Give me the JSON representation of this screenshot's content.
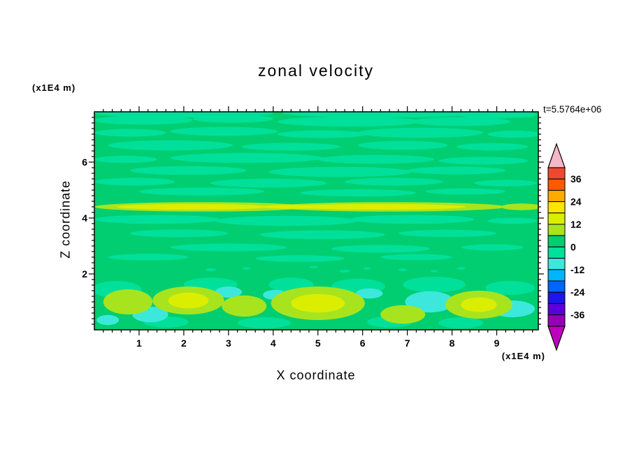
{
  "chart_data": {
    "type": "contour",
    "title": "zonal velocity",
    "xlabel": "X coordinate",
    "ylabel": "Z coordinate",
    "x_unit_label": "(x1E4 m)",
    "y_unit_label": "(x1E4 m)",
    "annotation": "t=5.5764e+06",
    "x_ticks": [
      1,
      2,
      3,
      4,
      5,
      6,
      7,
      8,
      9
    ],
    "y_ticks": [
      2,
      4,
      6
    ],
    "xlim": [
      0,
      9.93
    ],
    "ylim": [
      0,
      7.8
    ],
    "x_minor_step": 0.2,
    "y_minor_step": 0.2,
    "grid": false,
    "legend_position": "right-colorbar",
    "colorbar": {
      "tick_labels": [
        36,
        24,
        12,
        0,
        -12,
        -24,
        -36
      ],
      "levels": [
        -42,
        -36,
        -30,
        -24,
        -18,
        -12,
        -6,
        0,
        6,
        12,
        18,
        24,
        30,
        36,
        42
      ],
      "colors_low_to_high": [
        "#9400B4",
        "#5A00DC",
        "#1E14F0",
        "#0064FF",
        "#00B4FF",
        "#3CE8DC",
        "#00E09A",
        "#00CE70",
        "#A8E41E",
        "#DCEE00",
        "#FFE400",
        "#FFAA00",
        "#FF5A00",
        "#F04830"
      ],
      "over_arrow_color": "#F5B8C8",
      "under_arrow_color": "#BE00BE"
    },
    "field": {
      "background_value": 3,
      "blob_format": [
        "x",
        "z",
        "rx",
        "rz",
        "value"
      ],
      "blobs": [
        [
          2.0,
          7.75,
          2.0,
          0.15,
          -3
        ],
        [
          6.5,
          7.75,
          2.3,
          0.15,
          -3
        ],
        [
          9.0,
          7.7,
          0.9,
          0.13,
          -3
        ],
        [
          1.1,
          7.5,
          1.1,
          0.16,
          -3
        ],
        [
          3.1,
          7.55,
          0.9,
          0.14,
          -3
        ],
        [
          5.7,
          7.45,
          1.6,
          0.18,
          -3
        ],
        [
          8.2,
          7.45,
          1.1,
          0.16,
          -3
        ],
        [
          0.8,
          7.05,
          0.8,
          0.14,
          -3
        ],
        [
          2.9,
          7.1,
          1.2,
          0.16,
          -3
        ],
        [
          5.1,
          7.0,
          1.0,
          0.14,
          -3
        ],
        [
          7.3,
          7.05,
          1.4,
          0.18,
          -3
        ],
        [
          9.4,
          7.0,
          0.6,
          0.13,
          -3
        ],
        [
          1.7,
          6.6,
          1.4,
          0.18,
          -3
        ],
        [
          4.4,
          6.55,
          1.1,
          0.14,
          -3
        ],
        [
          6.9,
          6.6,
          1.0,
          0.16,
          -3
        ],
        [
          8.9,
          6.55,
          0.8,
          0.13,
          -3
        ],
        [
          0.7,
          6.1,
          0.7,
          0.13,
          -3
        ],
        [
          3.4,
          6.15,
          1.7,
          0.18,
          -3
        ],
        [
          6.3,
          6.1,
          1.3,
          0.16,
          -3
        ],
        [
          8.7,
          6.05,
          1.0,
          0.14,
          -3
        ],
        [
          2.1,
          5.7,
          1.3,
          0.16,
          -3
        ],
        [
          5.5,
          5.65,
          1.6,
          0.18,
          -3
        ],
        [
          8.1,
          5.7,
          1.1,
          0.14,
          -3
        ],
        [
          0.9,
          5.3,
          0.9,
          0.14,
          -3
        ],
        [
          3.9,
          5.25,
          1.3,
          0.16,
          -3
        ],
        [
          6.7,
          5.3,
          1.1,
          0.14,
          -3
        ],
        [
          9.2,
          5.25,
          0.7,
          0.12,
          -3
        ],
        [
          2.4,
          4.95,
          1.4,
          0.14,
          -3
        ],
        [
          5.9,
          4.9,
          1.3,
          0.13,
          -3
        ],
        [
          8.3,
          4.95,
          0.9,
          0.11,
          -3
        ],
        [
          2.4,
          4.4,
          2.4,
          0.17,
          9
        ],
        [
          6.6,
          4.4,
          2.6,
          0.17,
          9
        ],
        [
          9.55,
          4.4,
          0.45,
          0.12,
          9
        ],
        [
          2.2,
          4.4,
          1.7,
          0.1,
          15
        ],
        [
          6.4,
          4.4,
          1.9,
          0.1,
          15
        ],
        [
          4.45,
          4.4,
          0.7,
          0.07,
          15
        ],
        [
          1.4,
          3.95,
          1.4,
          0.16,
          -3
        ],
        [
          4.3,
          3.9,
          1.6,
          0.18,
          -3
        ],
        [
          7.1,
          3.95,
          1.4,
          0.16,
          -3
        ],
        [
          9.35,
          3.9,
          0.55,
          0.11,
          -3
        ],
        [
          1.9,
          3.45,
          1.1,
          0.14,
          -3
        ],
        [
          5.1,
          3.4,
          1.4,
          0.16,
          -3
        ],
        [
          7.9,
          3.45,
          1.1,
          0.13,
          -3
        ],
        [
          3.0,
          2.95,
          1.3,
          0.14,
          -3
        ],
        [
          6.4,
          2.9,
          1.1,
          0.14,
          -3
        ],
        [
          8.9,
          2.95,
          0.7,
          0.11,
          -3
        ],
        [
          1.2,
          2.6,
          0.9,
          0.12,
          -3
        ],
        [
          4.6,
          2.55,
          1.0,
          0.12,
          -3
        ],
        [
          7.2,
          2.6,
          0.8,
          0.11,
          -3
        ],
        [
          2.6,
          2.15,
          0.12,
          0.05,
          -3
        ],
        [
          3.4,
          2.2,
          0.1,
          0.04,
          -3
        ],
        [
          5.6,
          2.1,
          0.12,
          0.05,
          -3
        ],
        [
          6.1,
          2.2,
          0.09,
          0.04,
          -3
        ],
        [
          6.9,
          2.15,
          0.1,
          0.04,
          -3
        ],
        [
          7.6,
          2.1,
          0.08,
          0.04,
          -3
        ],
        [
          8.2,
          2.2,
          0.1,
          0.04,
          -3
        ],
        [
          4.9,
          2.25,
          0.1,
          0.04,
          -3
        ],
        [
          0.5,
          1.45,
          0.55,
          0.3,
          -3
        ],
        [
          2.6,
          1.62,
          0.6,
          0.25,
          -3
        ],
        [
          4.4,
          1.62,
          0.5,
          0.25,
          -3
        ],
        [
          5.9,
          1.55,
          0.6,
          0.28,
          -3
        ],
        [
          7.6,
          1.62,
          0.7,
          0.28,
          -3
        ],
        [
          9.3,
          1.5,
          0.55,
          0.25,
          -3
        ],
        [
          1.6,
          0.28,
          0.5,
          0.2,
          -3
        ],
        [
          3.8,
          0.25,
          0.6,
          0.2,
          -3
        ],
        [
          6.6,
          0.28,
          0.5,
          0.2,
          -3
        ],
        [
          8.2,
          0.25,
          0.5,
          0.2,
          -3
        ],
        [
          1.25,
          0.55,
          0.4,
          0.28,
          -9
        ],
        [
          3.0,
          1.35,
          0.3,
          0.2,
          -9
        ],
        [
          4.05,
          1.25,
          0.28,
          0.18,
          -9
        ],
        [
          6.15,
          1.3,
          0.3,
          0.18,
          -9
        ],
        [
          7.5,
          1.0,
          0.55,
          0.38,
          -9
        ],
        [
          9.35,
          0.75,
          0.5,
          0.3,
          -9
        ],
        [
          0.3,
          0.35,
          0.25,
          0.18,
          -9
        ],
        [
          0.75,
          1.0,
          0.55,
          0.45,
          9
        ],
        [
          2.1,
          1.05,
          0.8,
          0.5,
          9
        ],
        [
          3.35,
          0.85,
          0.5,
          0.38,
          9
        ],
        [
          5.0,
          0.95,
          1.05,
          0.6,
          9
        ],
        [
          6.9,
          0.55,
          0.5,
          0.33,
          9
        ],
        [
          8.6,
          0.9,
          0.75,
          0.5,
          9
        ],
        [
          2.1,
          1.05,
          0.45,
          0.28,
          15
        ],
        [
          5.0,
          0.95,
          0.6,
          0.33,
          15
        ],
        [
          8.6,
          0.9,
          0.4,
          0.26,
          15
        ]
      ]
    }
  }
}
